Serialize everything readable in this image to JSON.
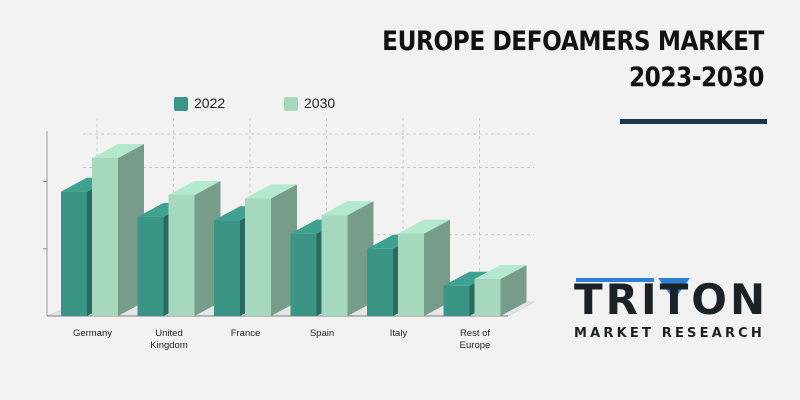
{
  "chart_data": {
    "type": "bar",
    "title": "EUROPE DEFOAMERS MARKET 2023-2030",
    "title_lines": [
      "EUROPE DEFOAMERS MARKET",
      "2023-2030"
    ],
    "categories": [
      "Germany",
      "United Kingdom",
      "France",
      "Spain",
      "Italy",
      "Rest of Europe"
    ],
    "category_lines": [
      [
        "Germany"
      ],
      [
        "United",
        "Kingdom"
      ],
      [
        "France"
      ],
      [
        "Spain"
      ],
      [
        "Italy"
      ],
      [
        "Rest of",
        "Europe"
      ]
    ],
    "series": [
      {
        "name": "2022",
        "values": [
          7.4,
          5.9,
          5.7,
          4.9,
          4.0,
          1.8
        ],
        "color": "#3a9585"
      },
      {
        "name": "2030",
        "values": [
          9.4,
          7.2,
          7.0,
          6.0,
          4.9,
          2.2
        ],
        "color": "#a6d8c0"
      }
    ],
    "xlabel": "",
    "ylabel": "",
    "ylim": [
      0,
      11
    ],
    "grid": true,
    "legend_position": "top",
    "style": "3d-column"
  },
  "logo": {
    "word": "TRITON",
    "tagline": "MARKET RESEARCH",
    "accent_color": "#2f7fd6"
  }
}
